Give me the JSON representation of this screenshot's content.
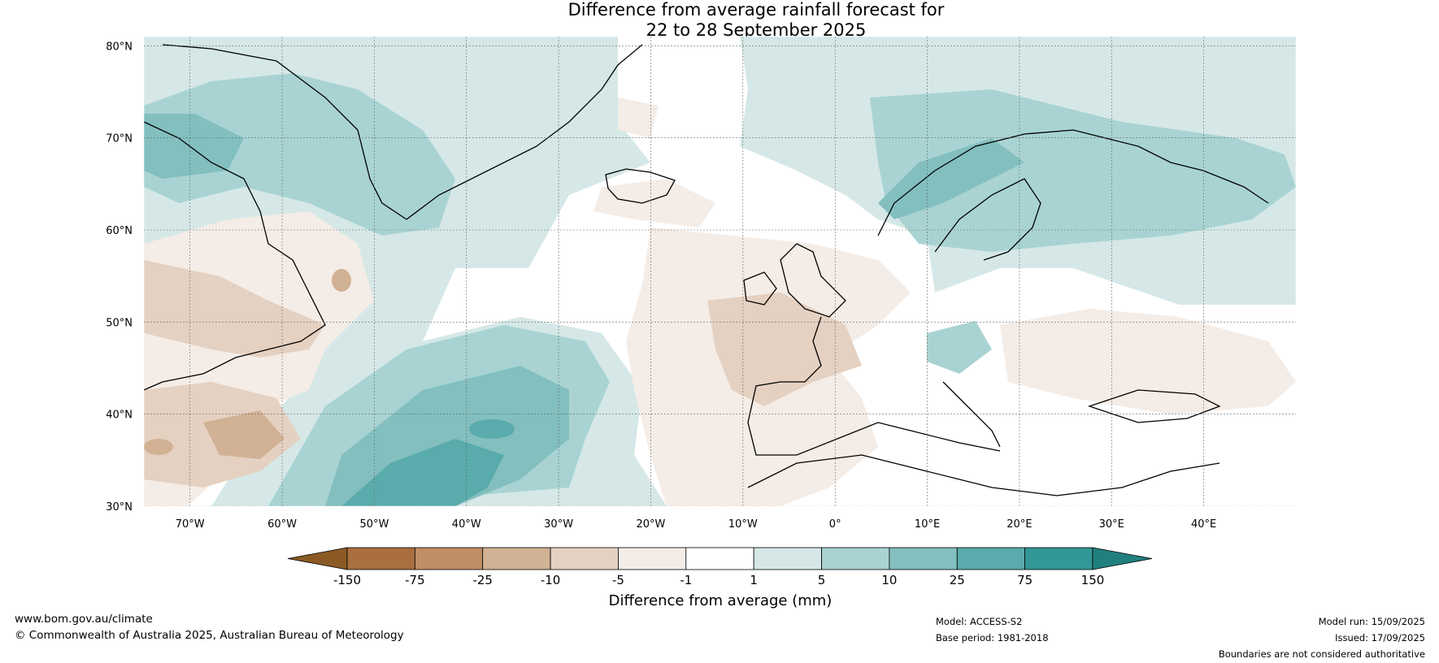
{
  "title": {
    "line1": "Difference from average rainfall forecast for",
    "line2": "22 to 28 September 2025"
  },
  "map": {
    "lat_labels": [
      "80°N",
      "70°N",
      "60°N",
      "50°N",
      "40°N",
      "30°N"
    ],
    "lon_labels": [
      "70°W",
      "60°W",
      "50°W",
      "40°W",
      "30°W",
      "20°W",
      "10°W",
      "0°",
      "10°E",
      "20°E",
      "30°E",
      "40°E"
    ],
    "extent": {
      "lon_min": -75,
      "lon_max": 50,
      "lat_min": 30,
      "lat_max": 81
    }
  },
  "legend": {
    "title": "Difference from average (mm)",
    "ticks": [
      "-150",
      "-75",
      "-25",
      "-10",
      "-5",
      "-1",
      "1",
      "5",
      "10",
      "25",
      "75",
      "150"
    ],
    "colors": [
      "#8b5a24",
      "#a96f3e",
      "#bf8e67",
      "#d2b294",
      "#e5d1c1",
      "#f4ece6",
      "#ffffff",
      "#d5e8e7",
      "#a9d3d3",
      "#83bfbf",
      "#5aabab",
      "#319797",
      "#21807e"
    ]
  },
  "footer": {
    "website": "www.bom.gov.au/climate",
    "copyright": "© Commonwealth of Australia 2025, Australian Bureau of Meteorology",
    "model": "Model: ACCESS-S2",
    "base_period": "Base period: 1981-2018",
    "model_run": "Model run: 15/09/2025",
    "issued": "Issued: 17/09/2025",
    "disclaimer": "Boundaries are not considered authoritative"
  }
}
